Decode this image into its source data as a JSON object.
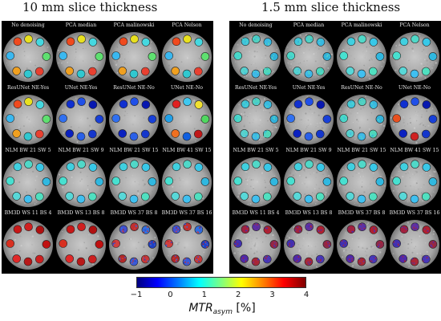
{
  "sections": [
    {
      "title": "10 mm slice thickness",
      "noise": "low",
      "panels": [
        {
          "label": "No denoising",
          "palette": "mixed"
        },
        {
          "label": "PCA median",
          "palette": "mixed"
        },
        {
          "label": "PCA malinowski",
          "palette": "mixed"
        },
        {
          "label": "PCA Nelson",
          "palette": "mixed"
        },
        {
          "label": "ResUNet NE-Yes",
          "palette": "mixed"
        },
        {
          "label": "UNet NE-Yes",
          "palette": "blue"
        },
        {
          "label": "ResUNet NE-No",
          "palette": "blue"
        },
        {
          "label": "UNet NE-No",
          "palette": "mixed-hot"
        },
        {
          "label": "NLM BW 21 SW 5",
          "palette": "cyan"
        },
        {
          "label": "NLM BW 21 SW 9",
          "palette": "cyan"
        },
        {
          "label": "NLM BW 21 SW 15",
          "palette": "cyan"
        },
        {
          "label": "NLM BW 41 SW 15",
          "palette": "cyan"
        },
        {
          "label": "BM3D WS 11 BS 4",
          "palette": "red"
        },
        {
          "label": "BM3D WS 13 BS 8",
          "palette": "red"
        },
        {
          "label": "BM3D WS 37 BS 8",
          "palette": "speckle"
        },
        {
          "label": "BM3D WS 37 BS 16",
          "palette": "speckle"
        }
      ]
    },
    {
      "title": "1.5 mm slice thickness",
      "noise": "high",
      "panels": [
        {
          "label": "No denoising",
          "palette": "speckle-cyan"
        },
        {
          "label": "PCA median",
          "palette": "speckle-cyan"
        },
        {
          "label": "PCA malinowski",
          "palette": "cyan"
        },
        {
          "label": "PCA Nelson",
          "palette": "cyan"
        },
        {
          "label": "ResUNet NE-Yes",
          "palette": "speckle-cyan"
        },
        {
          "label": "UNet NE-Yes",
          "palette": "blue"
        },
        {
          "label": "ResUNet NE-No",
          "palette": "speckle-cyan"
        },
        {
          "label": "UNet NE-No",
          "palette": "blue-hot"
        },
        {
          "label": "NLM BW 21 SW 5",
          "palette": "cyan"
        },
        {
          "label": "NLM BW 21 SW 9",
          "palette": "cyan"
        },
        {
          "label": "NLM BW 21 SW 15",
          "palette": "cyan"
        },
        {
          "label": "NLM BW 41 SW 15",
          "palette": "cyan"
        },
        {
          "label": "BM3D WS 11 BS 4",
          "palette": "speckle-red"
        },
        {
          "label": "BM3D WS 13 BS 8",
          "palette": "speckle-red"
        },
        {
          "label": "BM3D WS 37 BS 8",
          "palette": "speckle-red"
        },
        {
          "label": "BM3D WS 37 BS 16",
          "palette": "speckle-red"
        }
      ]
    }
  ],
  "colorbar": {
    "ticks": [
      "−1",
      "0",
      "1",
      "2",
      "3",
      "4"
    ],
    "min": -1,
    "max": 4,
    "label_main": "MTR",
    "label_sub": "asym",
    "label_unit": " [%]",
    "colors": [
      "#00007f",
      "#0000ff",
      "#007fff",
      "#00ffff",
      "#7fff7f",
      "#ffff00",
      "#ff7f00",
      "#ff0000",
      "#7f0000"
    ]
  }
}
